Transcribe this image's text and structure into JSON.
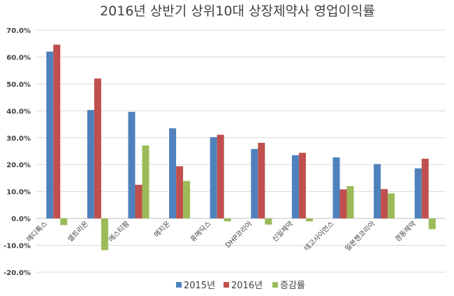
{
  "chart_data": {
    "type": "bar",
    "title": "2016년 상반기 상위10대 상장제약사 영업이익률",
    "categories": [
      "메디톡스",
      "셀트리온",
      "에스티팜",
      "메지온",
      "휴메딕스",
      "DHP코리아",
      "신일제약",
      "테고사이언스",
      "일본젠코리아",
      "경동제약"
    ],
    "series": [
      {
        "name": "2015년",
        "color": "#4f81bd",
        "values": [
          62.0,
          40.3,
          39.6,
          33.5,
          30.2,
          25.8,
          23.5,
          22.7,
          20.2,
          18.6
        ]
      },
      {
        "name": "2016년",
        "color": "#c0504d",
        "values": [
          64.6,
          52.0,
          12.5,
          19.4,
          31.1,
          28.1,
          24.4,
          10.8,
          10.9,
          22.2
        ]
      },
      {
        "name": "증감률",
        "color": "#9bbb59",
        "values": [
          -2.5,
          -11.8,
          27.1,
          13.9,
          -1.1,
          -2.3,
          -1.1,
          12.0,
          9.3,
          -4.0
        ]
      }
    ],
    "ylim": [
      -20,
      70
    ],
    "yticks": [
      "70.0%",
      "60.0%",
      "50.0%",
      "40.0%",
      "30.0%",
      "20.0%",
      "10.0%",
      "0.0%",
      "-10.0%",
      "-20.0%"
    ],
    "ytick_values": [
      70,
      60,
      50,
      40,
      30,
      20,
      10,
      0,
      -10,
      -20
    ],
    "grid": true,
    "legend_position": "bottom"
  }
}
